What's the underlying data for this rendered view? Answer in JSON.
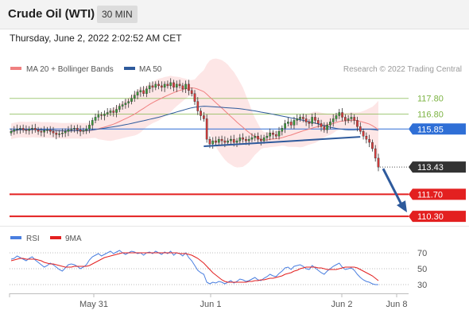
{
  "header": {
    "title": "Crude Oil (WTI)",
    "timeframe": "30 MIN"
  },
  "datetime": "Thursday, June 2, 2022 2:02:52 AM CET",
  "legend": {
    "items": [
      {
        "label": "MA 20 + Bollinger Bands",
        "color": "#f08080"
      },
      {
        "label": "MA 50",
        "color": "#2e5a9c"
      }
    ],
    "credit": "Research © 2022 Trading Central"
  },
  "chart_data": [
    {
      "type": "candlestick",
      "x_ticks": [
        "May 31",
        "Jun 1",
        "Jun 2",
        "Jun 8"
      ],
      "levels": [
        {
          "value": 117.8,
          "label": "117.80",
          "color": "#7cb342",
          "kind": "resistance"
        },
        {
          "value": 116.8,
          "label": "116.80",
          "color": "#7cb342",
          "kind": "resistance"
        },
        {
          "value": 115.85,
          "label": "115.85",
          "color": "#2f6fd6",
          "kind": "pivot"
        },
        {
          "value": 113.43,
          "label": "113.43",
          "color": "#333333",
          "kind": "last"
        },
        {
          "value": 111.7,
          "label": "111.70",
          "color": "#e32020",
          "kind": "support"
        },
        {
          "value": 110.3,
          "label": "110.30",
          "color": "#e32020",
          "kind": "support"
        }
      ],
      "close": [
        115.7,
        115.8,
        115.85,
        115.9,
        115.8,
        115.75,
        115.85,
        115.9,
        115.8,
        115.7,
        115.65,
        115.75,
        115.8,
        115.7,
        115.6,
        115.5,
        115.55,
        115.6,
        115.7,
        115.8,
        115.85,
        115.9,
        115.8,
        115.7,
        115.75,
        115.85,
        116.1,
        116.4,
        116.6,
        116.75,
        116.7,
        116.8,
        116.9,
        117.0,
        116.9,
        117.1,
        117.3,
        117.4,
        117.5,
        117.6,
        117.8,
        118.0,
        118.2,
        118.3,
        118.1,
        118.4,
        118.6,
        118.5,
        118.7,
        118.6,
        118.5,
        118.7,
        118.6,
        118.8,
        118.5,
        118.7,
        118.6,
        118.4,
        118.7,
        118.3,
        118.1,
        117.6,
        117.0,
        116.7,
        116.5,
        115.2,
        114.9,
        115.1,
        115.0,
        115.2,
        115.1,
        115.0,
        115.1,
        115.2,
        115.0,
        115.1,
        115.3,
        115.2,
        115.1,
        115.2,
        115.3,
        115.4,
        115.2,
        115.1,
        115.3,
        115.4,
        115.6,
        115.5,
        115.4,
        115.7,
        115.9,
        116.2,
        116.3,
        116.1,
        116.4,
        116.5,
        116.6,
        116.5,
        116.3,
        116.2,
        116.6,
        116.4,
        116.2,
        116.0,
        115.8,
        116.1,
        116.3,
        116.5,
        116.7,
        116.9,
        116.6,
        116.4,
        116.5,
        116.6,
        116.4,
        116.0,
        115.7,
        115.4,
        115.2,
        115.0,
        114.6,
        114.0,
        113.43
      ],
      "ylim": [
        109.8,
        119.2
      ]
    },
    {
      "type": "line",
      "y_ticks": [
        70,
        50,
        30
      ],
      "series": [
        {
          "name": "RSI",
          "color": "#4a7fe0",
          "values": [
            62,
            63,
            66,
            64,
            62,
            60,
            63,
            65,
            61,
            58,
            55,
            52,
            54,
            57,
            55,
            52,
            49,
            47,
            51,
            55,
            56,
            55,
            53,
            50,
            52,
            55,
            61,
            65,
            67,
            69,
            66,
            68,
            70,
            72,
            69,
            71,
            73,
            70,
            68,
            70,
            72,
            71,
            69,
            70,
            67,
            70,
            71,
            69,
            72,
            70,
            68,
            71,
            69,
            72,
            67,
            70,
            69,
            66,
            70,
            64,
            60,
            54,
            48,
            45,
            43,
            33,
            31,
            33,
            32,
            34,
            33,
            31,
            33,
            35,
            32,
            34,
            37,
            36,
            34,
            35,
            37,
            39,
            36,
            35,
            38,
            40,
            43,
            41,
            40,
            44,
            47,
            51,
            52,
            49,
            53,
            54,
            55,
            53,
            50,
            49,
            54,
            51,
            48,
            45,
            43,
            47,
            50,
            53,
            55,
            57,
            52,
            49,
            50,
            51,
            48,
            43,
            39,
            36,
            34,
            33,
            31,
            30,
            30
          ]
        },
        {
          "name": "9MA",
          "color": "#e32020",
          "values": [
            60,
            61,
            62,
            63,
            63,
            62,
            62,
            62,
            62,
            61,
            60,
            58,
            57,
            56,
            56,
            55,
            54,
            53,
            52,
            52,
            52,
            53,
            53,
            53,
            53,
            53,
            54,
            56,
            58,
            60,
            62,
            64,
            65,
            66,
            67,
            68,
            69,
            70,
            70,
            70,
            70,
            70,
            70,
            70,
            70,
            70,
            70,
            70,
            70,
            70,
            70,
            70,
            70,
            70,
            70,
            70,
            69,
            69,
            69,
            68,
            67,
            65,
            63,
            60,
            57,
            53,
            49,
            45,
            42,
            39,
            36,
            34,
            33,
            33,
            33,
            33,
            33,
            33,
            33,
            34,
            34,
            35,
            35,
            36,
            36,
            37,
            38,
            38,
            39,
            40,
            41,
            43,
            44,
            45,
            47,
            48,
            50,
            51,
            52,
            52,
            52,
            52,
            51,
            51,
            50,
            49,
            49,
            49,
            49,
            50,
            51,
            52,
            52,
            52,
            52,
            51,
            49,
            47,
            45,
            43,
            41,
            38,
            35
          ]
        }
      ],
      "legend": [
        "RSI",
        "9MA"
      ],
      "ylim": [
        22,
        80
      ]
    }
  ]
}
